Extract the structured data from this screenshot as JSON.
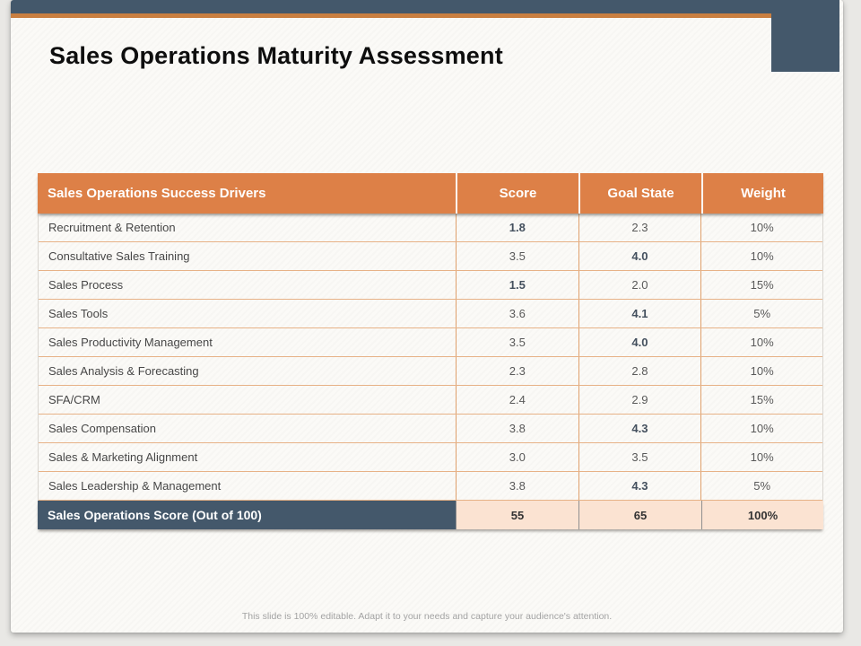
{
  "slide": {
    "title": "Sales Operations Maturity Assessment",
    "caption": "This slide is 100% editable. Adapt it to your needs and capture your audience's attention.",
    "accent_colors": {
      "navy": "#44586b",
      "orange_header": "#dd8047",
      "orange_line": "#c97f41",
      "peach": "#fbe3d2"
    }
  },
  "table": {
    "headers": [
      "Sales Operations Success Drivers",
      "Score",
      "Goal State",
      "Weight"
    ],
    "rows": [
      {
        "driver": "Recruitment & Retention",
        "score": "1.8",
        "score_bold": true,
        "goal": "2.3",
        "goal_bold": false,
        "weight": "10%"
      },
      {
        "driver": "Consultative Sales Training",
        "score": "3.5",
        "score_bold": false,
        "goal": "4.0",
        "goal_bold": true,
        "weight": "10%"
      },
      {
        "driver": "Sales Process",
        "score": "1.5",
        "score_bold": true,
        "goal": "2.0",
        "goal_bold": false,
        "weight": "15%"
      },
      {
        "driver": "Sales Tools",
        "score": "3.6",
        "score_bold": false,
        "goal": "4.1",
        "goal_bold": true,
        "weight": "5%"
      },
      {
        "driver": "Sales Productivity Management",
        "score": "3.5",
        "score_bold": false,
        "goal": "4.0",
        "goal_bold": true,
        "weight": "10%"
      },
      {
        "driver": "Sales Analysis & Forecasting",
        "score": "2.3",
        "score_bold": false,
        "goal": "2.8",
        "goal_bold": false,
        "weight": "10%"
      },
      {
        "driver": "SFA/CRM",
        "score": "2.4",
        "score_bold": false,
        "goal": "2.9",
        "goal_bold": false,
        "weight": "15%"
      },
      {
        "driver": "Sales Compensation",
        "score": "3.8",
        "score_bold": false,
        "goal": "4.3",
        "goal_bold": true,
        "weight": "10%"
      },
      {
        "driver": "Sales & Marketing Alignment",
        "score": "3.0",
        "score_bold": false,
        "goal": "3.5",
        "goal_bold": false,
        "weight": "10%"
      },
      {
        "driver": "Sales Leadership & Management",
        "score": "3.8",
        "score_bold": false,
        "goal": "4.3",
        "goal_bold": true,
        "weight": "5%"
      }
    ],
    "footer": {
      "label": "Sales Operations Score (Out of 100)",
      "score": "55",
      "goal": "65",
      "weight": "100%"
    }
  }
}
